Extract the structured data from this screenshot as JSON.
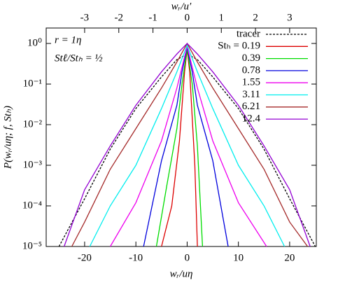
{
  "chart_data": {
    "type": "line",
    "xlabel": "wᵣ/uη",
    "x2label": "wᵣ/u′",
    "ylabel": "P(wᵣ/uη; f, Stₕ)",
    "annotations": [
      "r = 1η",
      "Stℓ/Stₕ = ½"
    ],
    "log_y": true,
    "xlim": [
      -27.5,
      25.2
    ],
    "x2lim": [
      -4.125,
      3.78
    ],
    "ylim": [
      1e-05,
      2.4
    ],
    "xticks": [
      -20,
      -10,
      0,
      10,
      20
    ],
    "x2ticks": [
      -3,
      -2,
      -1,
      0,
      1,
      2,
      3
    ],
    "yticks": [
      {
        "value": 1e-05,
        "label": "10⁻⁵"
      },
      {
        "value": 0.0001,
        "label": "10⁻⁴"
      },
      {
        "value": 0.001,
        "label": "10⁻³"
      },
      {
        "value": 0.01,
        "label": "10⁻²"
      },
      {
        "value": 0.1,
        "label": "10⁻¹"
      },
      {
        "value": 1,
        "label": "10⁰"
      }
    ],
    "legend": "upper right",
    "series": [
      {
        "name": "tracer",
        "color": "#000000",
        "dashed": true,
        "x": [
          -25,
          -20,
          -15,
          -10,
          -5,
          -2,
          0,
          2,
          5,
          10,
          15,
          20,
          25
        ],
        "values": [
          1e-05,
          0.00015,
          0.0025,
          0.025,
          0.15,
          0.4,
          0.55,
          0.4,
          0.15,
          0.025,
          0.0025,
          0.00015,
          1e-05
        ]
      },
      {
        "name": "Stₕ = 0.19",
        "color": "#dd0000",
        "x": [
          -5,
          -3,
          -1.5,
          -0.5,
          0,
          0.5,
          1.5,
          2
        ],
        "values": [
          1e-05,
          0.0001,
          0.004,
          0.2,
          0.7,
          0.2,
          0.001,
          1e-05
        ]
      },
      {
        "name": "0.39",
        "color": "#00dd00",
        "x": [
          -6,
          -4,
          -2,
          -1,
          0,
          1,
          2,
          3
        ],
        "values": [
          1e-05,
          0.0003,
          0.008,
          0.1,
          0.75,
          0.1,
          0.003,
          1e-05
        ]
      },
      {
        "name": "0.78",
        "color": "#0000dd",
        "x": [
          -8.5,
          -5,
          -2,
          -1,
          0,
          1,
          2,
          5,
          8
        ],
        "values": [
          1e-05,
          0.0013,
          0.03,
          0.2,
          0.8,
          0.2,
          0.03,
          0.0013,
          1e-05
        ]
      },
      {
        "name": "1.55",
        "color": "#ee00ee",
        "x": [
          -15,
          -10,
          -5,
          -2,
          0,
          2,
          5,
          10,
          15.5
        ],
        "values": [
          1e-05,
          0.00012,
          0.004,
          0.08,
          0.85,
          0.08,
          0.004,
          0.00012,
          1e-05
        ]
      },
      {
        "name": "3.11",
        "color": "#00eeee",
        "x": [
          -19,
          -15,
          -10,
          -5,
          -2,
          0,
          2,
          5,
          10,
          15,
          19
        ],
        "values": [
          1e-05,
          0.0001,
          0.001,
          0.025,
          0.2,
          0.9,
          0.2,
          0.025,
          0.001,
          0.0001,
          1e-05
        ]
      },
      {
        "name": "6.21",
        "color": "#a52a2a",
        "x": [
          -22.5,
          -20,
          -15,
          -10,
          -5,
          -2,
          0,
          2,
          5,
          10,
          15,
          20,
          23.5
        ],
        "values": [
          1e-05,
          4e-05,
          0.0008,
          0.008,
          0.08,
          0.35,
          1,
          0.35,
          0.08,
          0.008,
          0.0008,
          4e-05,
          1e-05
        ]
      },
      {
        "name": "12.4",
        "color": "#9400d3",
        "x": [
          -24,
          -20,
          -15,
          -10,
          -5,
          -2,
          0,
          2,
          5,
          10,
          15,
          20,
          24
        ],
        "values": [
          1e-05,
          0.00025,
          0.003,
          0.03,
          0.2,
          0.55,
          1,
          0.55,
          0.2,
          0.03,
          0.003,
          0.00025,
          1e-05
        ]
      }
    ]
  }
}
